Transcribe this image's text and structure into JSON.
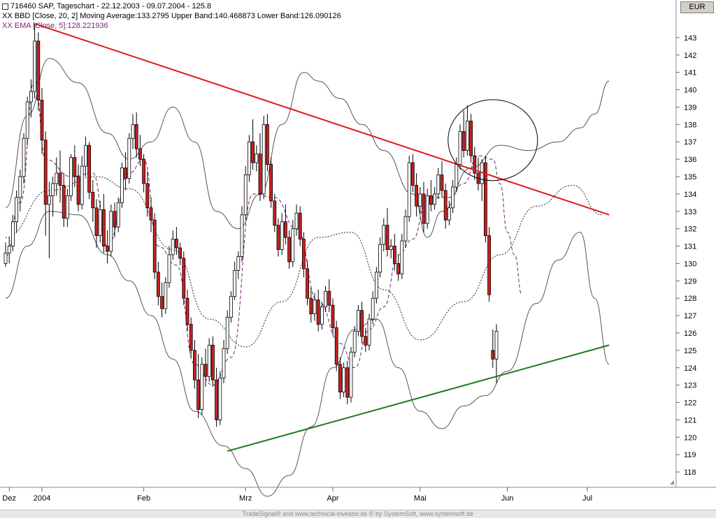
{
  "legend": {
    "line1": "716460 SAP, Tageschart - 22.12.2003 - 09.07.2004 - 125.8",
    "line2": "XX BBD [Close, 20, 2] Moving Average:133.2795 Upper Band:140.468873 Lower Band:126.090126",
    "line3": "XX EMA [Close, 5]:128.221936"
  },
  "currency_label": "EUR",
  "footer": "TradeSignal® and www.technical-investor.de © by SystemSoft, www.systemsoft.de",
  "colors": {
    "up_candle": "#ffffff",
    "down_candle": "#cc1f1f",
    "resistance_line": "#e01818",
    "support_line": "#1a7a1a",
    "bollinger": "#555555",
    "ema": "#7a1f7a"
  },
  "chart_data": {
    "type": "candlestick",
    "title": "716460 SAP, Tageschart - 22.12.2003 - 09.07.2004 - 125.8",
    "y_ticks": [
      118,
      119,
      120,
      121,
      122,
      123,
      124,
      125,
      126,
      127,
      128,
      129,
      130,
      131,
      132,
      133,
      134,
      135,
      136,
      137,
      138,
      139,
      140,
      141,
      142,
      143
    ],
    "y_range": [
      117.2,
      144.2
    ],
    "x_tick_labels": [
      "Dez",
      "2004",
      "Feb",
      "Mrz",
      "Apr",
      "Mai",
      "Jun",
      "Jul"
    ],
    "x_tick_bar_index": [
      1,
      10,
      38,
      66,
      90,
      114,
      138,
      160
    ],
    "ohlc": [
      [
        130.0,
        131.2,
        129.8,
        130.6
      ],
      [
        130.6,
        131.5,
        130.0,
        131.0
      ],
      [
        131.0,
        132.8,
        130.7,
        132.4
      ],
      [
        132.4,
        134.2,
        131.8,
        133.8
      ],
      [
        133.8,
        135.4,
        133.0,
        135.0
      ],
      [
        135.0,
        137.5,
        134.6,
        137.2
      ],
      [
        137.2,
        139.6,
        136.8,
        139.3
      ],
      [
        139.3,
        140.6,
        138.4,
        139.9
      ],
      [
        139.9,
        143.8,
        139.5,
        142.8
      ],
      [
        142.8,
        143.3,
        138.8,
        139.4
      ],
      [
        139.4,
        140.1,
        136.3,
        137.1
      ],
      [
        137.1,
        137.6,
        131.6,
        133.4
      ],
      [
        133.4,
        134.7,
        130.3,
        133.9
      ],
      [
        133.9,
        135.0,
        132.7,
        134.6
      ],
      [
        134.6,
        136.1,
        133.9,
        135.2
      ],
      [
        135.2,
        136.5,
        133.5,
        134.5
      ],
      [
        134.5,
        135.2,
        132.1,
        132.6
      ],
      [
        132.6,
        134.3,
        132.1,
        133.9
      ],
      [
        133.9,
        136.3,
        133.6,
        136.1
      ],
      [
        136.1,
        136.8,
        134.4,
        135.0
      ],
      [
        135.0,
        135.7,
        133.0,
        133.4
      ],
      [
        133.4,
        136.2,
        133.1,
        135.6
      ],
      [
        135.6,
        137.3,
        135.0,
        136.8
      ],
      [
        136.8,
        137.0,
        133.7,
        134.1
      ],
      [
        134.1,
        134.8,
        132.4,
        133.2
      ],
      [
        133.2,
        133.7,
        130.9,
        131.6
      ],
      [
        131.6,
        133.6,
        131.2,
        133.1
      ],
      [
        133.1,
        134.0,
        130.6,
        131.0
      ],
      [
        131.0,
        131.9,
        130.0,
        130.7
      ],
      [
        130.7,
        133.4,
        130.4,
        133.0
      ],
      [
        133.0,
        133.5,
        131.5,
        132.1
      ],
      [
        132.1,
        133.8,
        131.8,
        133.5
      ],
      [
        133.5,
        135.8,
        133.2,
        135.5
      ],
      [
        135.5,
        136.4,
        134.2,
        134.9
      ],
      [
        134.9,
        137.5,
        134.6,
        137.2
      ],
      [
        137.2,
        138.6,
        136.6,
        138.0
      ],
      [
        138.0,
        138.7,
        136.1,
        136.6
      ],
      [
        136.6,
        137.4,
        135.6,
        136.0
      ],
      [
        136.0,
        136.3,
        134.1,
        134.6
      ],
      [
        134.6,
        135.3,
        132.7,
        133.2
      ],
      [
        133.2,
        133.8,
        131.8,
        132.5
      ],
      [
        132.5,
        132.9,
        129.1,
        129.5
      ],
      [
        129.5,
        130.1,
        127.6,
        128.1
      ],
      [
        128.1,
        128.9,
        126.9,
        127.4
      ],
      [
        127.4,
        129.2,
        127.1,
        128.9
      ],
      [
        128.9,
        131.0,
        128.6,
        130.5
      ],
      [
        130.5,
        131.9,
        130.2,
        131.4
      ],
      [
        131.4,
        132.1,
        130.5,
        130.9
      ],
      [
        130.9,
        131.2,
        129.9,
        130.3
      ],
      [
        130.3,
        130.7,
        127.6,
        128.0
      ],
      [
        128.0,
        128.5,
        126.1,
        126.5
      ],
      [
        126.5,
        126.9,
        124.6,
        125.0
      ],
      [
        125.0,
        125.6,
        122.8,
        123.3
      ],
      [
        123.3,
        124.8,
        121.1,
        121.6
      ],
      [
        121.6,
        124.6,
        121.3,
        124.2
      ],
      [
        124.2,
        125.1,
        122.9,
        123.5
      ],
      [
        123.5,
        125.7,
        123.2,
        125.3
      ],
      [
        125.3,
        125.8,
        122.9,
        123.3
      ],
      [
        123.3,
        124.0,
        120.6,
        121.0
      ],
      [
        121.0,
        123.8,
        120.7,
        123.4
      ],
      [
        123.4,
        125.6,
        123.1,
        125.1
      ],
      [
        125.1,
        127.3,
        124.8,
        126.9
      ],
      [
        126.9,
        128.4,
        126.6,
        128.1
      ],
      [
        128.1,
        130.1,
        127.9,
        129.6
      ],
      [
        129.6,
        130.7,
        129.1,
        130.4
      ],
      [
        130.4,
        133.3,
        130.1,
        132.8
      ],
      [
        132.8,
        135.6,
        132.5,
        135.1
      ],
      [
        135.1,
        137.4,
        134.7,
        137.0
      ],
      [
        137.0,
        138.3,
        135.4,
        135.8
      ],
      [
        135.8,
        136.8,
        135.3,
        136.3
      ],
      [
        136.3,
        137.5,
        133.6,
        134.0
      ],
      [
        134.0,
        138.5,
        133.7,
        138.0
      ],
      [
        138.0,
        138.6,
        135.3,
        135.7
      ],
      [
        135.7,
        136.1,
        133.2,
        133.6
      ],
      [
        133.6,
        134.0,
        131.8,
        132.2
      ],
      [
        132.2,
        132.6,
        130.4,
        130.8
      ],
      [
        130.8,
        132.9,
        130.5,
        132.4
      ],
      [
        132.4,
        133.4,
        131.1,
        131.5
      ],
      [
        131.5,
        131.9,
        129.7,
        130.1
      ],
      [
        130.1,
        132.5,
        129.8,
        132.0
      ],
      [
        132.0,
        133.4,
        131.6,
        132.9
      ],
      [
        132.9,
        133.3,
        131.0,
        131.4
      ],
      [
        131.4,
        131.8,
        129.2,
        129.7
      ],
      [
        129.7,
        130.2,
        127.6,
        128.0
      ],
      [
        128.0,
        128.6,
        126.6,
        127.1
      ],
      [
        127.1,
        128.3,
        126.7,
        127.9
      ],
      [
        127.9,
        128.5,
        126.1,
        126.5
      ],
      [
        126.5,
        127.8,
        126.2,
        127.5
      ],
      [
        127.5,
        128.7,
        127.2,
        128.4
      ],
      [
        128.4,
        129.1,
        127.2,
        127.6
      ],
      [
        127.6,
        128.0,
        125.9,
        126.3
      ],
      [
        126.3,
        126.7,
        123.8,
        124.2
      ],
      [
        124.2,
        124.6,
        122.2,
        122.6
      ],
      [
        122.6,
        124.3,
        122.3,
        124.0
      ],
      [
        124.0,
        124.4,
        121.9,
        122.3
      ],
      [
        122.3,
        125.2,
        122.0,
        124.9
      ],
      [
        124.9,
        126.4,
        124.6,
        126.1
      ],
      [
        126.1,
        127.6,
        125.8,
        127.3
      ],
      [
        127.3,
        127.8,
        125.4,
        125.8
      ],
      [
        125.8,
        126.3,
        124.9,
        125.3
      ],
      [
        125.3,
        127.1,
        125.0,
        126.8
      ],
      [
        126.8,
        128.4,
        126.5,
        128.0
      ],
      [
        128.0,
        129.8,
        127.7,
        129.5
      ],
      [
        129.5,
        131.5,
        129.2,
        131.1
      ],
      [
        131.1,
        132.6,
        130.7,
        132.2
      ],
      [
        132.2,
        133.2,
        130.4,
        130.8
      ],
      [
        130.8,
        131.4,
        130.3,
        131.0
      ],
      [
        131.0,
        131.7,
        129.6,
        130.0
      ],
      [
        130.0,
        130.5,
        129.0,
        129.4
      ],
      [
        129.4,
        131.7,
        129.1,
        131.3
      ],
      [
        131.3,
        133.1,
        130.9,
        132.7
      ],
      [
        132.7,
        136.2,
        132.4,
        135.8
      ],
      [
        135.8,
        136.3,
        134.1,
        134.5
      ],
      [
        134.5,
        135.2,
        132.7,
        133.3
      ],
      [
        133.3,
        134.4,
        132.9,
        134.0
      ],
      [
        134.0,
        134.7,
        131.8,
        132.3
      ],
      [
        132.3,
        134.3,
        132.0,
        133.9
      ],
      [
        133.9,
        134.8,
        133.0,
        133.4
      ],
      [
        133.4,
        134.4,
        133.1,
        134.0
      ],
      [
        134.0,
        135.5,
        133.7,
        135.1
      ],
      [
        135.1,
        135.9,
        133.8,
        134.2
      ],
      [
        134.2,
        134.6,
        132.0,
        132.5
      ],
      [
        132.5,
        133.6,
        132.2,
        133.2
      ],
      [
        133.2,
        134.8,
        132.9,
        134.4
      ],
      [
        134.4,
        136.1,
        134.1,
        135.7
      ],
      [
        135.7,
        138.0,
        135.4,
        137.6
      ],
      [
        137.6,
        138.8,
        136.1,
        136.5
      ],
      [
        136.5,
        139.1,
        136.2,
        138.2
      ],
      [
        138.2,
        138.6,
        135.8,
        136.2
      ],
      [
        136.2,
        136.7,
        134.8,
        135.2
      ],
      [
        135.2,
        136.1,
        134.2,
        134.6
      ],
      [
        134.6,
        136.0,
        133.6,
        135.8
      ],
      [
        135.8,
        136.2,
        131.2,
        131.6
      ],
      [
        131.6,
        132.1,
        127.8,
        128.2
      ],
      [
        125.0,
        126.2,
        124.0,
        124.5
      ],
      [
        124.5,
        126.5,
        123.1,
        126.1
      ]
    ],
    "bollinger": {
      "middle": [
        [
          0,
          131.5
        ],
        [
          12,
          134.2
        ],
        [
          25,
          135.0
        ],
        [
          34,
          134.3
        ],
        [
          46,
          130.8
        ],
        [
          56,
          126.8
        ],
        [
          66,
          125.2
        ],
        [
          76,
          127.8
        ],
        [
          86,
          131.5
        ],
        [
          95,
          131.8
        ],
        [
          104,
          128.5
        ],
        [
          114,
          125.6
        ],
        [
          126,
          127.8
        ],
        [
          136,
          130.5
        ],
        [
          146,
          133.3
        ],
        [
          156,
          134.5
        ],
        [
          164,
          132.8
        ]
      ],
      "upper": [
        [
          0,
          133.2
        ],
        [
          6,
          138.5
        ],
        [
          12,
          141.8
        ],
        [
          20,
          140.4
        ],
        [
          28,
          137.5
        ],
        [
          34,
          136.0
        ],
        [
          40,
          137.0
        ],
        [
          46,
          139.0
        ],
        [
          52,
          137.0
        ],
        [
          58,
          133.0
        ],
        [
          64,
          132.0
        ],
        [
          70,
          134.0
        ],
        [
          76,
          138.0
        ],
        [
          82,
          141.0
        ],
        [
          86,
          140.5
        ],
        [
          92,
          139.5
        ],
        [
          98,
          138.0
        ],
        [
          104,
          136.5
        ],
        [
          112,
          134.0
        ],
        [
          116,
          131.5
        ],
        [
          120,
          133.0
        ],
        [
          128,
          135.5
        ],
        [
          136,
          136.8
        ],
        [
          144,
          136.5
        ],
        [
          152,
          137.0
        ],
        [
          158,
          137.8
        ],
        [
          162,
          138.6
        ],
        [
          166,
          140.5
        ]
      ],
      "lower": [
        [
          0,
          128.0
        ],
        [
          6,
          131.0
        ],
        [
          12,
          133.0
        ],
        [
          20,
          132.8
        ],
        [
          28,
          130.5
        ],
        [
          34,
          129.0
        ],
        [
          40,
          127.0
        ],
        [
          46,
          124.5
        ],
        [
          52,
          121.5
        ],
        [
          60,
          119.5
        ],
        [
          66,
          118.2
        ],
        [
          72,
          116.6
        ],
        [
          78,
          117.8
        ],
        [
          84,
          120.6
        ],
        [
          90,
          124.0
        ],
        [
          96,
          126.2
        ],
        [
          102,
          126.8
        ],
        [
          108,
          124.0
        ],
        [
          114,
          121.5
        ],
        [
          120,
          120.5
        ],
        [
          126,
          121.8
        ],
        [
          132,
          122.4
        ],
        [
          138,
          123.8
        ],
        [
          146,
          127.7
        ],
        [
          152,
          130.2
        ],
        [
          158,
          131.8
        ],
        [
          162,
          128.0
        ],
        [
          166,
          124.2
        ]
      ]
    },
    "ema": [
      [
        0,
        130.4
      ],
      [
        4,
        133.5
      ],
      [
        8,
        140.6
      ],
      [
        11,
        136.0
      ],
      [
        18,
        135.0
      ],
      [
        24,
        135.2
      ],
      [
        28,
        131.0
      ],
      [
        34,
        135.2
      ],
      [
        38,
        136.0
      ],
      [
        42,
        131.0
      ],
      [
        47,
        129.9
      ],
      [
        52,
        124.2
      ],
      [
        57,
        123.0
      ],
      [
        62,
        124.6
      ],
      [
        68,
        134.0
      ],
      [
        74,
        133.8
      ],
      [
        80,
        132.0
      ],
      [
        86,
        127.8
      ],
      [
        92,
        125.4
      ],
      [
        96,
        124.0
      ],
      [
        100,
        126.2
      ],
      [
        104,
        127.5
      ],
      [
        108,
        130.5
      ],
      [
        112,
        131.4
      ],
      [
        116,
        133.8
      ],
      [
        122,
        133.8
      ],
      [
        126,
        134.6
      ],
      [
        130,
        136.2
      ],
      [
        134,
        136.0
      ],
      [
        136,
        134.6
      ],
      [
        138,
        131.8
      ],
      [
        140,
        130.5
      ],
      [
        142,
        128.2
      ]
    ],
    "trendlines": [
      {
        "name": "resistance",
        "from": [
          8,
          143.8
        ],
        "to": [
          166,
          132.8
        ]
      },
      {
        "name": "support",
        "from": [
          61,
          119.2
        ],
        "to": [
          166,
          125.3
        ]
      }
    ],
    "annotation_circle": {
      "center_bar": 134,
      "center_price": 137.1,
      "note": "circle around breakout area"
    }
  }
}
